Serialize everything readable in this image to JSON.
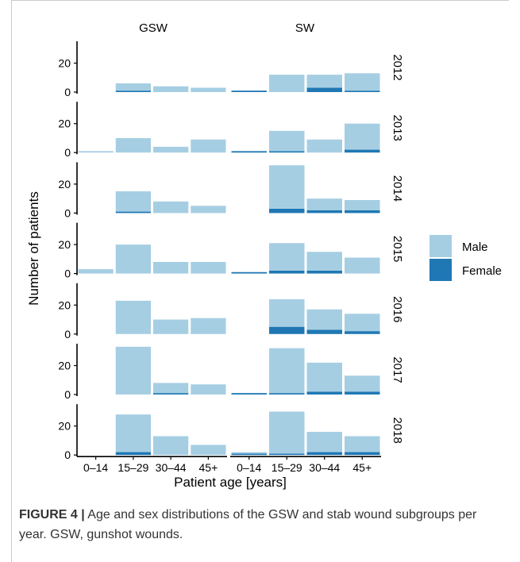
{
  "chart_data": {
    "type": "bar",
    "stacked": true,
    "ylabel": "Number of patients",
    "xlabel": "Patient age [years]",
    "categories": [
      "0–14",
      "15–29",
      "30–44",
      "45+"
    ],
    "columns": [
      "GSW",
      "SW"
    ],
    "rows": [
      "2012",
      "2013",
      "2014",
      "2015",
      "2016",
      "2017",
      "2018"
    ],
    "y_ticks": [
      "0",
      "20"
    ],
    "ylim": [
      0,
      34
    ],
    "legend": {
      "position": "right",
      "entries": [
        "Male",
        "Female"
      ]
    },
    "colors": {
      "Male": "#a6cee3",
      "Female": "#1f78b4"
    },
    "panels": [
      {
        "row": "2012",
        "column": "GSW",
        "male": [
          0,
          5,
          4,
          3
        ],
        "female": [
          0,
          1,
          0,
          0
        ]
      },
      {
        "row": "2012",
        "column": "SW",
        "male": [
          0,
          12,
          9,
          12
        ],
        "female": [
          1,
          0,
          3,
          1
        ]
      },
      {
        "row": "2013",
        "column": "GSW",
        "male": [
          1,
          10,
          4,
          9
        ],
        "female": [
          0,
          0,
          0,
          0
        ]
      },
      {
        "row": "2013",
        "column": "SW",
        "male": [
          0,
          14,
          9,
          18
        ],
        "female": [
          1,
          1,
          0,
          2
        ]
      },
      {
        "row": "2014",
        "column": "GSW",
        "male": [
          0,
          14,
          8,
          5
        ],
        "female": [
          0,
          1,
          0,
          0
        ]
      },
      {
        "row": "2014",
        "column": "SW",
        "male": [
          0,
          30,
          8,
          7
        ],
        "female": [
          0,
          3,
          2,
          2
        ]
      },
      {
        "row": "2015",
        "column": "GSW",
        "male": [
          3,
          20,
          8,
          8
        ],
        "female": [
          0,
          0,
          0,
          0
        ]
      },
      {
        "row": "2015",
        "column": "SW",
        "male": [
          0,
          19,
          13,
          11
        ],
        "female": [
          1,
          2,
          2,
          0
        ]
      },
      {
        "row": "2016",
        "column": "GSW",
        "male": [
          0,
          23,
          10,
          11
        ],
        "female": [
          0,
          0,
          0,
          0
        ]
      },
      {
        "row": "2016",
        "column": "SW",
        "male": [
          0,
          19,
          14,
          12
        ],
        "female": [
          0,
          5,
          3,
          2
        ]
      },
      {
        "row": "2017",
        "column": "GSW",
        "male": [
          0,
          33,
          7,
          7
        ],
        "female": [
          0,
          0,
          1,
          0
        ]
      },
      {
        "row": "2017",
        "column": "SW",
        "male": [
          0,
          31,
          20,
          11
        ],
        "female": [
          1,
          1,
          2,
          2
        ]
      },
      {
        "row": "2018",
        "column": "GSW",
        "male": [
          0,
          26,
          13,
          7
        ],
        "female": [
          0,
          2,
          0,
          0
        ]
      },
      {
        "row": "2018",
        "column": "SW",
        "male": [
          1,
          29,
          14,
          11
        ],
        "female": [
          1,
          1,
          2,
          2
        ]
      }
    ]
  },
  "caption": {
    "label": "FIGURE 4 |",
    "text": " Age and sex distributions of the GSW and stab wound subgroups per year. GSW, gunshot wounds."
  }
}
